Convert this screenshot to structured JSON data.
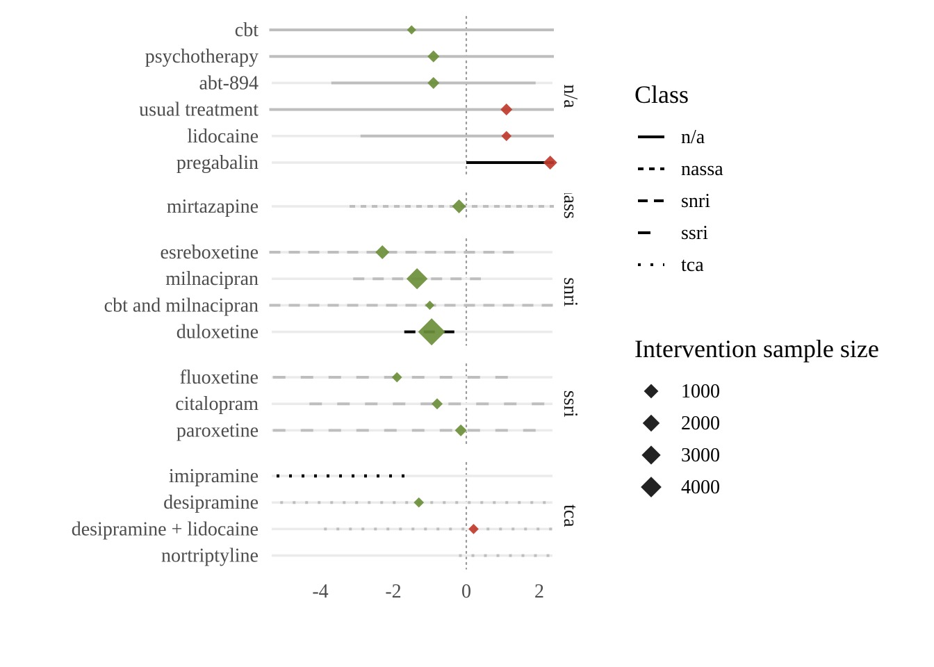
{
  "chart_data": {
    "type": "forest",
    "xlabel": "",
    "ylabel": "",
    "xlim": [
      -5.4,
      2.4
    ],
    "xticks": [
      -4,
      -2,
      0,
      2
    ],
    "xtick_labels": [
      "-4",
      "-2",
      "0",
      "2"
    ],
    "reference_line": 0,
    "grid": "horizontal row lines only",
    "colors": {
      "favors_intervention": "#6b8e3a",
      "favors_control": "#c0392b",
      "ci_grey": "#bebebe",
      "ci_highlight": "#000000",
      "row_line": "#ebebeb"
    },
    "panels": [
      {
        "label": "n/a",
        "linetype": "solid",
        "rows": [
          {
            "name": "cbt",
            "estimate": -1.5,
            "ci": [
              -5.4,
              2.4
            ],
            "n": 200,
            "highlight": false
          },
          {
            "name": "psychotherapy",
            "estimate": -0.9,
            "ci": [
              -5.4,
              2.4
            ],
            "n": 500,
            "highlight": false
          },
          {
            "name": "abt-894",
            "estimate": -0.9,
            "ci": [
              -3.7,
              1.9
            ],
            "n": 500,
            "highlight": false
          },
          {
            "name": "usual treatment",
            "estimate": 1.1,
            "ci": [
              -5.4,
              2.4
            ],
            "n": 500,
            "highlight": false
          },
          {
            "name": "lidocaine",
            "estimate": 1.1,
            "ci": [
              -2.9,
              2.4
            ],
            "n": 300,
            "highlight": false
          },
          {
            "name": "pregabalin",
            "estimate": 2.3,
            "ci": [
              0.0,
              2.4
            ],
            "n": 800,
            "highlight": true
          }
        ]
      },
      {
        "label": "nassa",
        "linetype": "short-dash",
        "rows": [
          {
            "name": "mirtazapine",
            "estimate": -0.2,
            "ci": [
              -3.2,
              2.4
            ],
            "n": 800,
            "highlight": false
          }
        ]
      },
      {
        "label": "snri",
        "linetype": "dash",
        "rows": [
          {
            "name": "esreboxetine",
            "estimate": -2.3,
            "ci": [
              -5.4,
              1.3
            ],
            "n": 800,
            "highlight": false
          },
          {
            "name": "milnacipran",
            "estimate": -1.35,
            "ci": [
              -3.1,
              0.4
            ],
            "n": 2500,
            "highlight": false
          },
          {
            "name": "cbt and milnacipran",
            "estimate": -1.0,
            "ci": [
              -5.4,
              2.4
            ],
            "n": 200,
            "highlight": false
          },
          {
            "name": "duloxetine",
            "estimate": -0.95,
            "ci": [
              -1.7,
              -0.3
            ],
            "n": 4600,
            "highlight": true
          }
        ]
      },
      {
        "label": "ssri",
        "linetype": "long-dash",
        "rows": [
          {
            "name": "fluoxetine",
            "estimate": -1.9,
            "ci": [
              -5.3,
              1.4
            ],
            "n": 300,
            "highlight": false
          },
          {
            "name": "citalopram",
            "estimate": -0.8,
            "ci": [
              -4.3,
              2.4
            ],
            "n": 400,
            "highlight": false
          },
          {
            "name": "paroxetine",
            "estimate": -0.15,
            "ci": [
              -5.3,
              2.1
            ],
            "n": 500,
            "highlight": false
          }
        ]
      },
      {
        "label": "tca",
        "linetype": "dotted",
        "rows": [
          {
            "name": "imipramine",
            "estimate": null,
            "ci": [
              -5.2,
              -1.6
            ],
            "n": null,
            "highlight": true
          },
          {
            "name": "desipramine",
            "estimate": -1.3,
            "ci": [
              -5.1,
              2.4
            ],
            "n": 300,
            "highlight": false
          },
          {
            "name": "desipramine + lidocaine",
            "estimate": 0.2,
            "ci": [
              -3.9,
              2.4
            ],
            "n": 300,
            "highlight": false
          },
          {
            "name": "nortriptyline",
            "estimate": null,
            "ci": [
              -0.2,
              2.4
            ],
            "n": null,
            "highlight": false
          }
        ]
      }
    ],
    "legend": {
      "placement": "right",
      "class_title": "Class",
      "class_items": [
        {
          "label": "n/a",
          "linetype": "solid"
        },
        {
          "label": "nassa",
          "linetype": "short-dash"
        },
        {
          "label": "snri",
          "linetype": "dash"
        },
        {
          "label": "ssri",
          "linetype": "long-dash"
        },
        {
          "label": "tca",
          "linetype": "dotted"
        }
      ],
      "size_title": "Intervention sample size",
      "size_items": [
        {
          "label": "1000",
          "value": 1000
        },
        {
          "label": "2000",
          "value": 2000
        },
        {
          "label": "3000",
          "value": 3000
        },
        {
          "label": "4000",
          "value": 4000
        }
      ]
    }
  }
}
